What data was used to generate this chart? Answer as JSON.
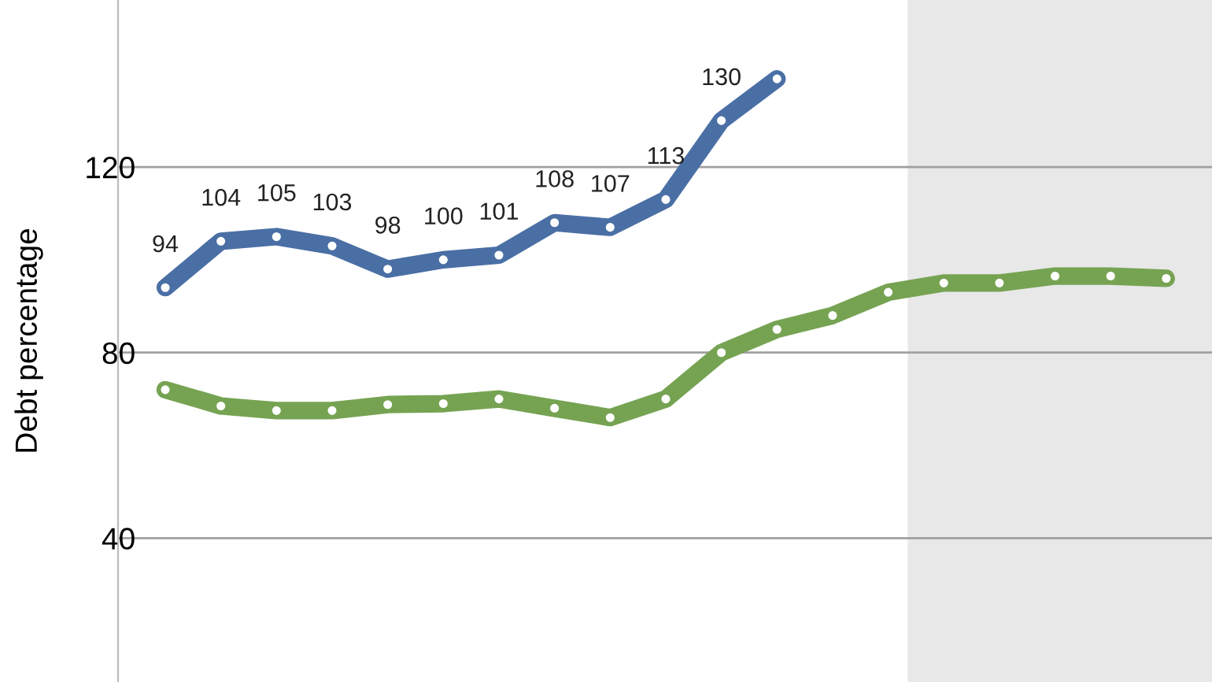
{
  "chart_data": {
    "type": "line",
    "ylabel": "Debt percentage",
    "categories": [
      null,
      null,
      null,
      null,
      null,
      null,
      null,
      null,
      null,
      null,
      null,
      null,
      null,
      null,
      null,
      null,
      null,
      null,
      null
    ],
    "series": [
      {
        "color": "#4a6fa5",
        "values": [
          94,
          104,
          105,
          103,
          98,
          100,
          101,
          108,
          107,
          113,
          130,
          139,
          null,
          null,
          null,
          null,
          null,
          null,
          null
        ],
        "value_labels": [
          "94",
          "104",
          "105",
          "103",
          "98",
          "100",
          "101",
          "108",
          "107",
          "113",
          "130",
          null,
          null,
          null,
          null,
          null,
          null,
          null,
          null
        ]
      },
      {
        "color": "#76a352",
        "values": [
          72,
          68.5,
          67.5,
          67.5,
          68.8,
          69,
          70,
          68,
          66,
          70,
          80,
          85,
          88,
          93,
          95,
          95,
          96.5,
          96.5,
          96
        ]
      }
    ],
    "ylim": [
      9,
      156
    ],
    "yticks": [
      40,
      80,
      120
    ],
    "grid": "y",
    "marker": "circle",
    "line_style": "solid",
    "tick_labels": "y"
  }
}
